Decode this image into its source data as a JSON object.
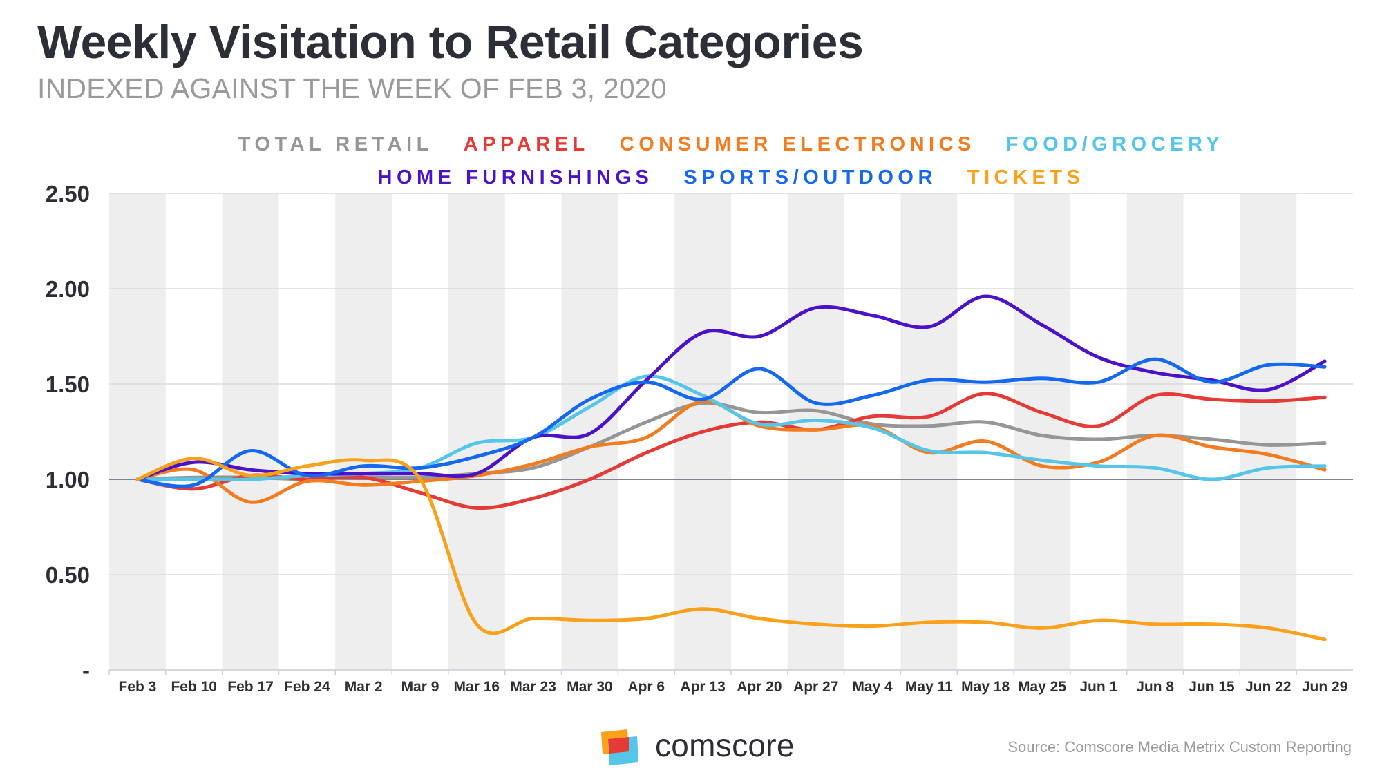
{
  "title": "Weekly Visitation to Retail Categories",
  "subtitle": "INDEXED AGAINST THE WEEK OF FEB 3, 2020",
  "source": "Source: Comscore Media Metrix Custom Reporting",
  "logo_text": "comscore",
  "chart_data": {
    "type": "line",
    "title": "Weekly Visitation to Retail Categories",
    "subtitle": "INDEXED AGAINST THE WEEK OF FEB 3, 2020",
    "xlabel": "",
    "ylabel": "",
    "ylim": [
      0,
      2.5
    ],
    "y_ticks": [
      {
        "value": 2.5,
        "label": "2.50"
      },
      {
        "value": 2.0,
        "label": "2.00"
      },
      {
        "value": 1.5,
        "label": "1.50"
      },
      {
        "value": 1.0,
        "label": "1.00"
      },
      {
        "value": 0.5,
        "label": "0.50"
      },
      {
        "value": 0.0,
        "label": "-"
      }
    ],
    "grid": true,
    "baseline": 1.0,
    "legend_position": "top-center",
    "categories": [
      "Feb 3",
      "Feb 10",
      "Feb 17",
      "Feb 24",
      "Mar 2",
      "Mar 9",
      "Mar 16",
      "Mar 23",
      "Mar 30",
      "Apr 6",
      "Apr 13",
      "Apr 20",
      "Apr 27",
      "May 4",
      "May 11",
      "May 18",
      "May 25",
      "Jun 1",
      "Jun 8",
      "Jun 15",
      "Jun 22",
      "Jun 29"
    ],
    "series": [
      {
        "name": "TOTAL RETAIL",
        "color": "#969696",
        "values": [
          1.0,
          1.01,
          1.01,
          1.0,
          1.01,
          1.01,
          1.03,
          1.06,
          1.17,
          1.3,
          1.4,
          1.35,
          1.36,
          1.29,
          1.28,
          1.3,
          1.23,
          1.21,
          1.23,
          1.21,
          1.18,
          1.19
        ]
      },
      {
        "name": "APPAREL",
        "color": "#e53a35",
        "values": [
          1.0,
          0.95,
          1.02,
          1.0,
          1.01,
          0.93,
          0.85,
          0.9,
          1.0,
          1.14,
          1.25,
          1.3,
          1.26,
          1.33,
          1.33,
          1.45,
          1.35,
          1.28,
          1.44,
          1.42,
          1.41,
          1.43
        ]
      },
      {
        "name": "CONSUMER ELECTRONICS",
        "color": "#f47c20",
        "values": [
          1.0,
          1.05,
          0.88,
          0.99,
          0.97,
          0.99,
          1.02,
          1.08,
          1.17,
          1.22,
          1.41,
          1.28,
          1.26,
          1.28,
          1.14,
          1.2,
          1.07,
          1.09,
          1.23,
          1.17,
          1.13,
          1.05
        ]
      },
      {
        "name": "FOOD/GROCERY",
        "color": "#56c6e8",
        "values": [
          1.0,
          1.0,
          1.0,
          1.02,
          1.03,
          1.06,
          1.19,
          1.22,
          1.38,
          1.54,
          1.44,
          1.29,
          1.31,
          1.27,
          1.15,
          1.14,
          1.1,
          1.07,
          1.06,
          1.0,
          1.06,
          1.07
        ]
      },
      {
        "name": "HOME FURNISHINGS",
        "color": "#4b12c8",
        "values": [
          1.0,
          1.09,
          1.05,
          1.03,
          1.03,
          1.03,
          1.03,
          1.22,
          1.24,
          1.52,
          1.77,
          1.75,
          1.9,
          1.86,
          1.8,
          1.96,
          1.81,
          1.64,
          1.56,
          1.52,
          1.47,
          1.62
        ]
      },
      {
        "name": "SPORTS/OUTDOOR",
        "color": "#1468f2",
        "values": [
          1.0,
          0.97,
          1.15,
          1.02,
          1.07,
          1.06,
          1.12,
          1.22,
          1.42,
          1.51,
          1.42,
          1.58,
          1.4,
          1.44,
          1.52,
          1.51,
          1.53,
          1.51,
          1.63,
          1.51,
          1.6,
          1.59
        ]
      },
      {
        "name": "TICKETS",
        "color": "#f9a11b",
        "values": [
          1.0,
          1.11,
          1.02,
          1.07,
          1.1,
          1.0,
          0.24,
          0.27,
          0.26,
          0.27,
          0.32,
          0.27,
          0.24,
          0.23,
          0.25,
          0.25,
          0.22,
          0.26,
          0.24,
          0.24,
          0.22,
          0.16
        ]
      }
    ]
  }
}
